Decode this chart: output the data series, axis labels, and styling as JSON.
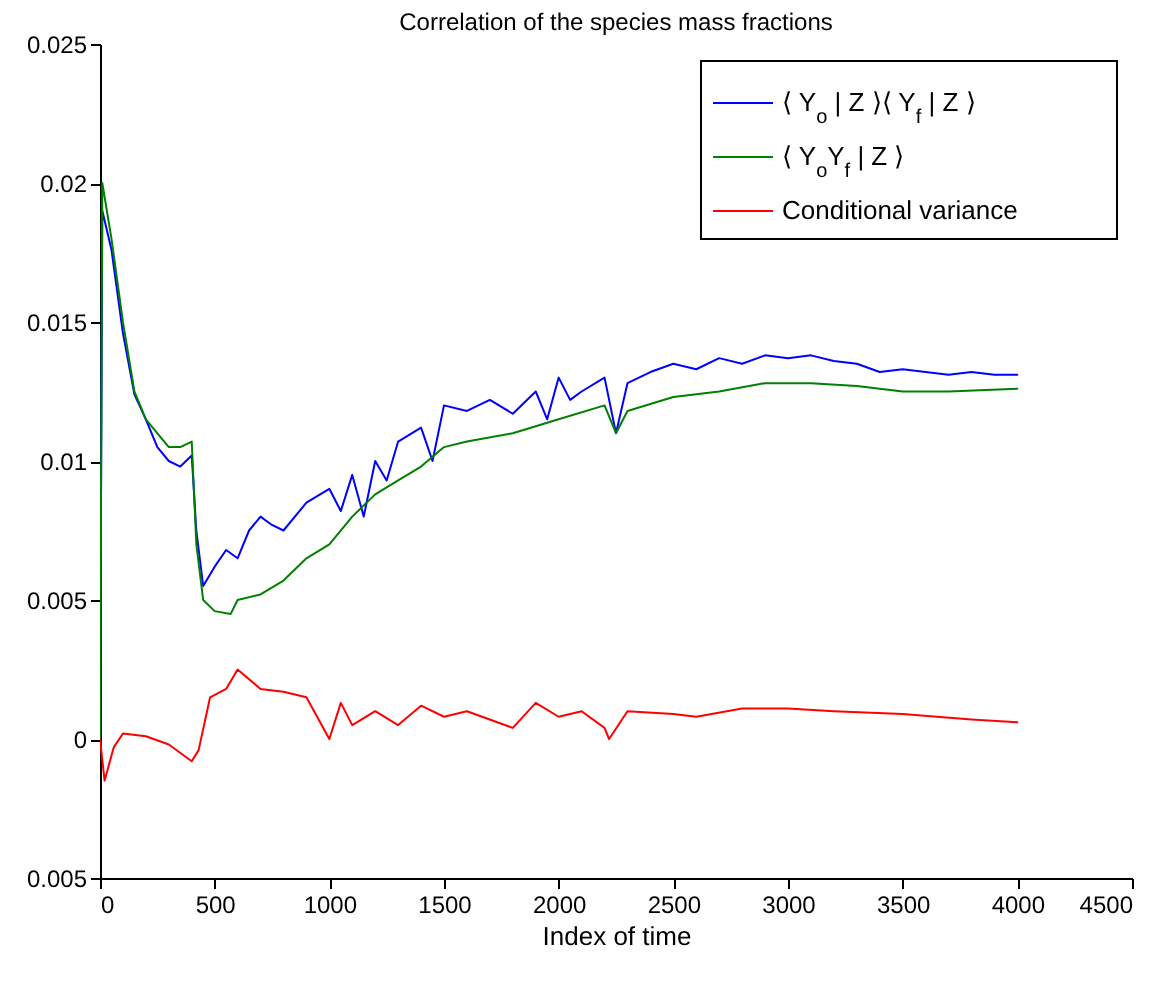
{
  "chart_data": {
    "type": "line",
    "title": "Correlation of the species mass fractions",
    "xlabel": "Index of time",
    "xlim": [
      0,
      4500
    ],
    "xticks": [
      0,
      500,
      1000,
      1500,
      2000,
      2500,
      3000,
      3500,
      4000,
      4500
    ],
    "ylim": [
      -0.005,
      0.025
    ],
    "yticks": [
      {
        "value": -0.005,
        "label": "0.005"
      },
      0,
      0.005,
      0.01,
      0.015,
      0.02,
      0.025
    ],
    "grid": false,
    "legend": "top right",
    "line_style": "solid",
    "marker": "none",
    "series": [
      {
        "name": "⟨ Y$_{o}$ | Z ⟩⟨ Y$_{f}$ | Z ⟩",
        "color": "#0000ff",
        "x": [
          0,
          10,
          50,
          100,
          150,
          200,
          250,
          300,
          350,
          400,
          420,
          450,
          500,
          550,
          600,
          650,
          700,
          750,
          800,
          900,
          1000,
          1050,
          1100,
          1150,
          1200,
          1250,
          1300,
          1400,
          1450,
          1500,
          1600,
          1700,
          1800,
          1900,
          1950,
          2000,
          2050,
          2100,
          2200,
          2250,
          2300,
          2400,
          2500,
          2600,
          2700,
          2800,
          2900,
          3000,
          3100,
          3200,
          3300,
          3400,
          3500,
          3600,
          3700,
          3800,
          3900,
          4000
        ],
        "values": [
          0,
          0.019,
          0.0176,
          0.0146,
          0.0124,
          0.0115,
          0.0105,
          0.01,
          0.0098,
          0.0102,
          0.0075,
          0.0055,
          0.0062,
          0.0068,
          0.0065,
          0.0075,
          0.008,
          0.0077,
          0.0075,
          0.0085,
          0.009,
          0.0082,
          0.0095,
          0.008,
          0.01,
          0.0093,
          0.0107,
          0.0112,
          0.01,
          0.012,
          0.0118,
          0.0122,
          0.0117,
          0.0125,
          0.0115,
          0.013,
          0.0122,
          0.0125,
          0.013,
          0.011,
          0.0128,
          0.0132,
          0.0135,
          0.0133,
          0.0137,
          0.0135,
          0.0138,
          0.0137,
          0.0138,
          0.0136,
          0.0135,
          0.0132,
          0.0133,
          0.0132,
          0.0131,
          0.0132,
          0.0131,
          0.0131
        ]
      },
      {
        "name": "⟨ Y$_{o}$Y$_{f}$ | Z ⟩",
        "color": "#008000",
        "x": [
          0,
          10,
          50,
          100,
          150,
          200,
          300,
          350,
          400,
          420,
          450,
          500,
          570,
          600,
          700,
          800,
          900,
          1000,
          1100,
          1200,
          1300,
          1400,
          1500,
          1600,
          1800,
          2000,
          2200,
          2250,
          2300,
          2500,
          2700,
          2900,
          3100,
          3300,
          3500,
          3700,
          4000
        ],
        "values": [
          0,
          0.02,
          0.018,
          0.015,
          0.0125,
          0.0115,
          0.0105,
          0.0105,
          0.0107,
          0.007,
          0.005,
          0.0046,
          0.0045,
          0.005,
          0.0052,
          0.0057,
          0.0065,
          0.007,
          0.008,
          0.0088,
          0.0093,
          0.0098,
          0.0105,
          0.0107,
          0.011,
          0.0115,
          0.012,
          0.011,
          0.0118,
          0.0123,
          0.0125,
          0.0128,
          0.0128,
          0.0127,
          0.0125,
          0.0125,
          0.0126
        ]
      },
      {
        "name": "Conditional variance",
        "color": "#ff0000",
        "x": [
          0,
          20,
          60,
          100,
          200,
          300,
          400,
          430,
          480,
          550,
          600,
          700,
          800,
          900,
          1000,
          1050,
          1100,
          1200,
          1300,
          1400,
          1500,
          1600,
          1800,
          1900,
          2000,
          2100,
          2200,
          2220,
          2300,
          2500,
          2600,
          2800,
          3000,
          3200,
          3500,
          3800,
          4000
        ],
        "values": [
          0,
          -0.0015,
          -0.0003,
          0.0002,
          0.0001,
          -0.0002,
          -0.0008,
          -0.0004,
          0.0015,
          0.0018,
          0.0025,
          0.0018,
          0.0017,
          0.0015,
          0,
          0.0013,
          0.0005,
          0.001,
          0.0005,
          0.0012,
          0.0008,
          0.001,
          0.0004,
          0.0013,
          0.0008,
          0.001,
          0.0004,
          0,
          0.001,
          0.0009,
          0.0008,
          0.0011,
          0.0011,
          0.001,
          0.0009,
          0.0007,
          0.0006
        ]
      }
    ]
  }
}
